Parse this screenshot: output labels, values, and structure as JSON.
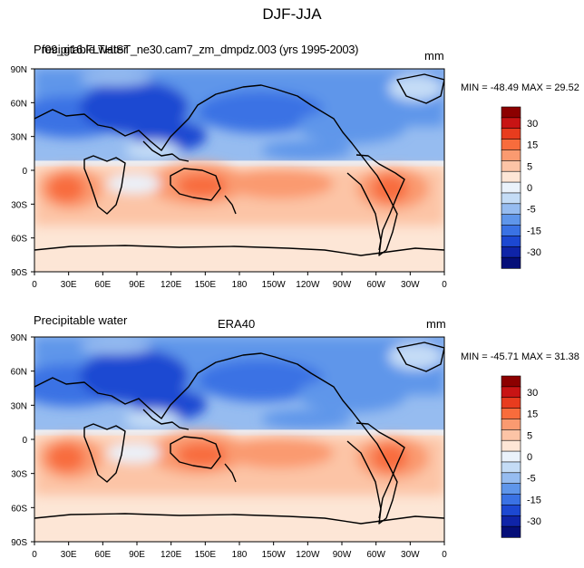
{
  "title": "DJF-JJA",
  "colorbar": {
    "labels": [
      "30",
      "15",
      "5",
      "0",
      "-5",
      "-15",
      "-30"
    ],
    "colors": [
      "#8c0000",
      "#c81414",
      "#e83c1e",
      "#f86c3c",
      "#fa9a70",
      "#fcc4a6",
      "#fde6d6",
      "#eaf2fb",
      "#c4dcf6",
      "#96bcf0",
      "#5f96ea",
      "#3a72e4",
      "#1c48d2",
      "#0f24a8",
      "#050e78"
    ]
  },
  "x_ticks": [
    "0",
    "30E",
    "60E",
    "90E",
    "120E",
    "150E",
    "180",
    "150W",
    "120W",
    "90W",
    "60W",
    "30W",
    "0"
  ],
  "y_ticks": [
    "90N",
    "60N",
    "30N",
    "0",
    "30S",
    "60S",
    "90S"
  ],
  "panels": [
    {
      "left_title_overlap": "Precipitable water",
      "left_title_overlap2": "f09_g16.FLTHIST_ne30.cam7_zm_dmpdz.003 (yrs 1995-2003)",
      "right_title": "mm",
      "minmax": "MIN = -48.49 MAX =  29.52"
    },
    {
      "left_title": "Precipitable water",
      "center_title": "ERA40",
      "right_title": "mm",
      "minmax": "MIN = -45.71 MAX =  31.38"
    }
  ]
}
